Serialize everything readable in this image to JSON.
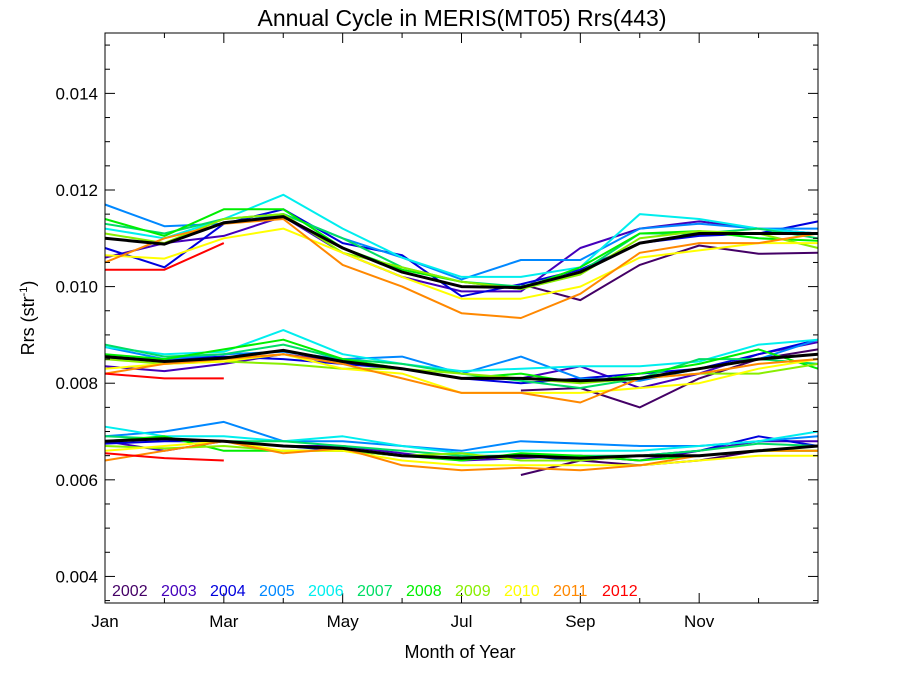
{
  "chart_data": {
    "type": "line",
    "title": "Annual Cycle in MERIS(MT05) Rrs(443)",
    "xlabel": "Month of Year",
    "ylabel": {
      "base": "Rrs (str",
      "sup": "-1",
      "close": ")"
    },
    "x_ticks": [
      "Jan",
      "Mar",
      "May",
      "Jul",
      "Sep",
      "Nov"
    ],
    "y_ticks": [
      "0.004",
      "0.006",
      "0.008",
      "0.010",
      "0.012",
      "0.014"
    ],
    "xlim": [
      1,
      13
    ],
    "ylim": [
      0.00345,
      0.01525
    ],
    "grid": false,
    "legend_position": "bottom-left",
    "series": [
      {
        "name": "2002",
        "color": "#440066",
        "groups": [
          [
            null,
            null,
            null,
            null,
            null,
            null,
            null,
            0.01005,
            0.00972,
            0.01045,
            0.01085,
            0.01068,
            0.0107
          ],
          [
            null,
            null,
            null,
            null,
            null,
            null,
            null,
            0.00785,
            0.0079,
            0.0075,
            0.0081,
            0.0085,
            0.0087
          ],
          [
            null,
            null,
            null,
            null,
            null,
            null,
            null,
            0.0061,
            0.0064,
            0.0063,
            0.0064,
            0.0066,
            0.0067
          ]
        ]
      },
      {
        "name": "2003",
        "color": "#4400bb",
        "groups": [
          [
            0.0106,
            0.0109,
            0.01105,
            0.01145,
            0.0107,
            0.0102,
            0.0099,
            0.0099,
            0.0108,
            0.0112,
            0.01135,
            0.0112,
            0.0111
          ],
          [
            0.00835,
            0.00825,
            0.0084,
            0.0086,
            0.00845,
            0.0083,
            0.0081,
            0.0081,
            0.00835,
            0.0079,
            0.0082,
            0.0086,
            0.00885
          ],
          [
            0.0068,
            0.0066,
            0.0068,
            0.0067,
            0.0067,
            0.00655,
            0.0064,
            0.00645,
            0.0065,
            0.0064,
            0.0066,
            0.0068,
            0.0068
          ]
        ]
      },
      {
        "name": "2004",
        "color": "#0000dd",
        "groups": [
          [
            0.0108,
            0.0104,
            0.0113,
            0.0116,
            0.0109,
            0.01065,
            0.0098,
            0.01005,
            0.01035,
            0.0109,
            0.01105,
            0.0111,
            0.01135
          ],
          [
            0.0085,
            0.0085,
            0.00855,
            0.0085,
            0.0084,
            0.0083,
            0.0081,
            0.008,
            0.0081,
            0.0082,
            0.0083,
            0.0086,
            0.0089
          ],
          [
            0.00675,
            0.0068,
            0.0068,
            0.0067,
            0.0066,
            0.0065,
            0.00645,
            0.0065,
            0.0064,
            0.0065,
            0.0066,
            0.0069,
            0.0067
          ]
        ]
      },
      {
        "name": "2005",
        "color": "#0088ff",
        "groups": [
          [
            0.0117,
            0.01125,
            0.0113,
            0.0115,
            0.011,
            0.0106,
            0.01015,
            0.01055,
            0.01055,
            0.0112,
            0.0113,
            0.0112,
            0.0112
          ],
          [
            0.00875,
            0.0085,
            0.0086,
            0.00865,
            0.0085,
            0.00855,
            0.0082,
            0.00855,
            0.0081,
            0.00805,
            0.0083,
            0.0085,
            0.0089
          ],
          [
            0.0069,
            0.007,
            0.0072,
            0.0068,
            0.0068,
            0.0067,
            0.0066,
            0.0068,
            0.00675,
            0.0067,
            0.0067,
            0.0068,
            0.0069
          ]
        ]
      },
      {
        "name": "2006",
        "color": "#00eeee",
        "groups": [
          [
            0.0112,
            0.011,
            0.0114,
            0.0119,
            0.0112,
            0.0106,
            0.0102,
            0.0102,
            0.0104,
            0.0115,
            0.0114,
            0.0112,
            0.0111
          ],
          [
            0.00875,
            0.0086,
            0.00865,
            0.0091,
            0.0086,
            0.0084,
            0.00825,
            0.0083,
            0.00835,
            0.00835,
            0.00845,
            0.0088,
            0.0089
          ],
          [
            0.0071,
            0.0069,
            0.0069,
            0.0068,
            0.0069,
            0.0067,
            0.00655,
            0.0066,
            0.0066,
            0.0066,
            0.0067,
            0.0068,
            0.007
          ]
        ]
      },
      {
        "name": "2007",
        "color": "#00dd66",
        "groups": [
          [
            0.0113,
            0.0111,
            0.0114,
            0.0115,
            0.011,
            0.0104,
            0.0101,
            0.01,
            0.0103,
            0.0111,
            0.0111,
            0.0112,
            0.011
          ],
          [
            0.0088,
            0.00855,
            0.0086,
            0.0088,
            0.0085,
            0.0084,
            0.0082,
            0.00805,
            0.0079,
            0.0081,
            0.0085,
            0.0085,
            0.0084
          ],
          [
            0.0069,
            0.00685,
            0.0068,
            0.0068,
            0.0067,
            0.0066,
            0.0065,
            0.0065,
            0.0065,
            0.0065,
            0.0066,
            0.00675,
            0.0067
          ]
        ]
      },
      {
        "name": "2008",
        "color": "#00ee00",
        "groups": [
          [
            0.0114,
            0.01105,
            0.0116,
            0.0116,
            0.0108,
            0.01035,
            0.0101,
            0.00995,
            0.0104,
            0.0111,
            0.01115,
            0.011,
            0.01095
          ],
          [
            0.0086,
            0.0085,
            0.0087,
            0.0089,
            0.0085,
            0.0083,
            0.0081,
            0.0082,
            0.008,
            0.0082,
            0.0084,
            0.0087,
            0.0083
          ],
          [
            0.0068,
            0.0069,
            0.0066,
            0.0066,
            0.0066,
            0.0065,
            0.0064,
            0.00655,
            0.0065,
            0.0064,
            0.0065,
            0.0066,
            0.0066
          ]
        ]
      },
      {
        "name": "2009",
        "color": "#88ee00",
        "groups": [
          [
            0.0111,
            0.0109,
            0.0114,
            0.0115,
            0.0107,
            0.0104,
            0.0101,
            0.00995,
            0.01025,
            0.011,
            0.01115,
            0.0111,
            0.0108
          ],
          [
            0.0085,
            0.0084,
            0.00845,
            0.0084,
            0.0083,
            0.0083,
            0.0082,
            0.0081,
            0.008,
            0.0081,
            0.0082,
            0.0082,
            0.0084
          ],
          [
            0.0067,
            0.00665,
            0.0067,
            0.0066,
            0.0066,
            0.0065,
            0.00655,
            0.0064,
            0.0064,
            0.0065,
            0.0065,
            0.0066,
            0.0066
          ]
        ]
      },
      {
        "name": "2010",
        "color": "#ffff00",
        "groups": [
          [
            0.01065,
            0.01058,
            0.011,
            0.0112,
            0.0107,
            0.0102,
            0.00975,
            0.00975,
            0.01,
            0.0106,
            0.01075,
            0.0109,
            0.0109
          ],
          [
            0.0083,
            0.0084,
            0.00845,
            0.0086,
            0.0083,
            0.0082,
            0.0078,
            0.0078,
            0.0078,
            0.0079,
            0.008,
            0.0083,
            0.0085
          ],
          [
            0.0066,
            0.0067,
            0.0068,
            0.0066,
            0.0066,
            0.0064,
            0.0063,
            0.0063,
            0.0063,
            0.0063,
            0.0064,
            0.0065,
            0.0065
          ]
        ]
      },
      {
        "name": "2011",
        "color": "#ff8800",
        "groups": [
          [
            0.0105,
            0.011,
            0.0113,
            0.0114,
            0.01045,
            0.01,
            0.00945,
            0.00935,
            0.00985,
            0.0107,
            0.0109,
            0.0109,
            0.0111
          ],
          [
            0.0082,
            0.0084,
            0.0085,
            0.0086,
            0.0084,
            0.0081,
            0.0078,
            0.0078,
            0.0076,
            0.0081,
            0.0082,
            0.0084,
            0.0085
          ],
          [
            0.0064,
            0.0066,
            0.0068,
            0.00655,
            0.00665,
            0.0063,
            0.0062,
            0.00625,
            0.0062,
            0.0063,
            0.0065,
            0.0066,
            0.0066
          ]
        ]
      },
      {
        "name": "2012",
        "color": "#ff0000",
        "groups": [
          [
            0.01035,
            0.01035,
            0.0109,
            null,
            null,
            null,
            null,
            null,
            null,
            null,
            null,
            null,
            null
          ],
          [
            0.0082,
            0.0081,
            0.0081,
            null,
            null,
            null,
            null,
            null,
            null,
            null,
            null,
            null,
            null
          ],
          [
            0.00655,
            0.00645,
            0.0064,
            null,
            null,
            null,
            null,
            null,
            null,
            null,
            null,
            null,
            null
          ]
        ]
      }
    ],
    "mean": {
      "color": "#000000",
      "groups": [
        [
          0.011,
          0.01088,
          0.01132,
          0.01145,
          0.0108,
          0.0103,
          0.01,
          0.00998,
          0.0103,
          0.0109,
          0.0111,
          0.0111,
          0.0111
        ],
        [
          0.00855,
          0.00845,
          0.00852,
          0.00868,
          0.00845,
          0.0083,
          0.0081,
          0.0081,
          0.00805,
          0.0081,
          0.0083,
          0.0085,
          0.0086
        ],
        [
          0.0068,
          0.00685,
          0.0068,
          0.0067,
          0.00665,
          0.0065,
          0.00645,
          0.0065,
          0.00645,
          0.0065,
          0.0065,
          0.0066,
          0.0067
        ]
      ]
    }
  }
}
